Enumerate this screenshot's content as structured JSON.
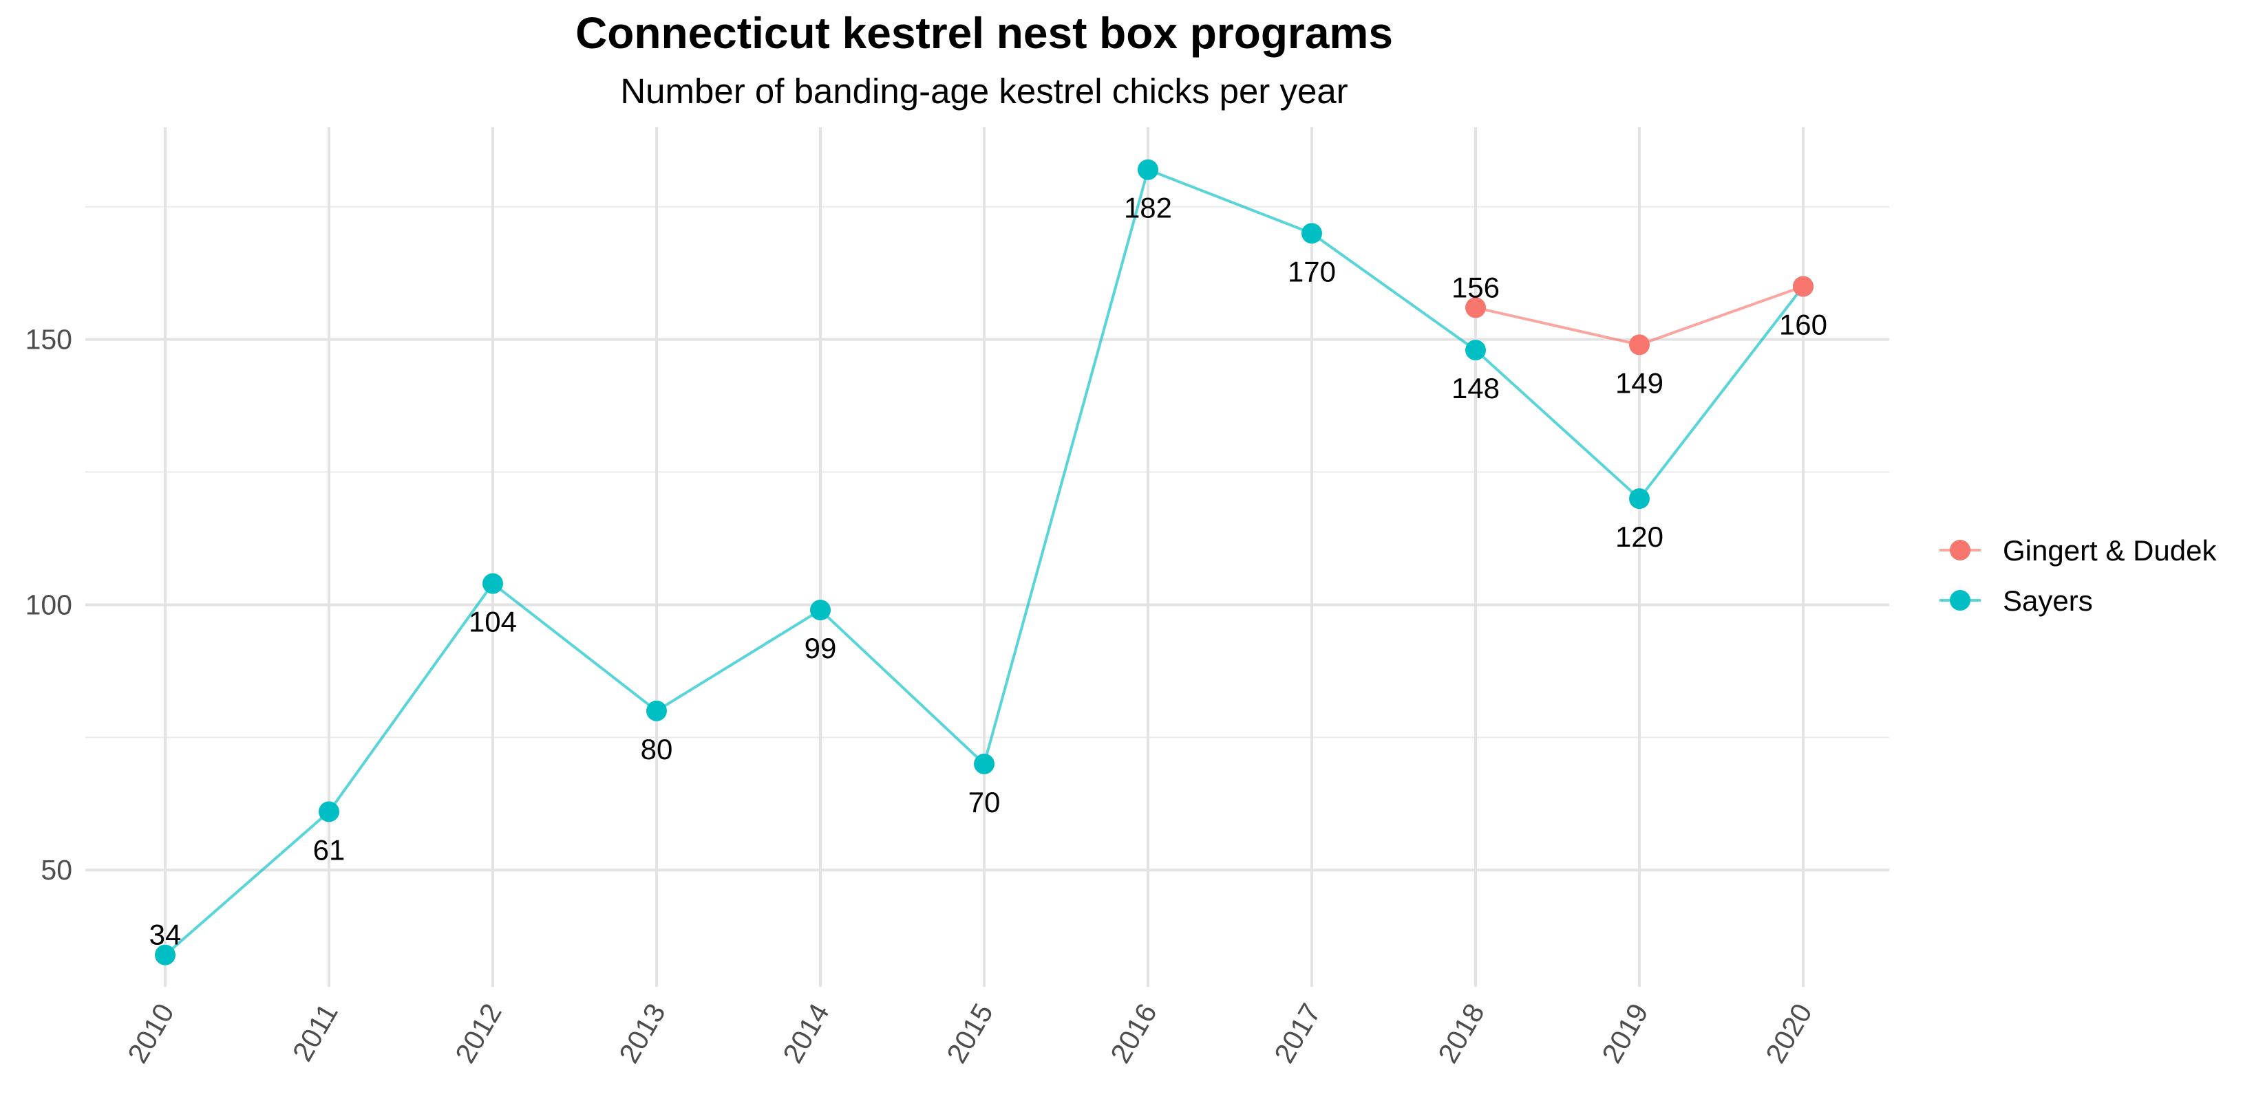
{
  "chart_data": {
    "type": "line",
    "title": "Connecticut kestrel nest box programs",
    "subtitle": "Number of banding-age kestrel chicks per year",
    "xlabel": "",
    "ylabel": "",
    "x": [
      "2010",
      "2011",
      "2012",
      "2013",
      "2014",
      "2015",
      "2016",
      "2017",
      "2018",
      "2019",
      "2020"
    ],
    "ylim": [
      28,
      190
    ],
    "y_ticks": [
      50,
      100,
      150
    ],
    "grid": true,
    "legend": "right",
    "series": [
      {
        "name": "Gingert & Dudek",
        "color": "#F8766D",
        "points": [
          {
            "x": "2018",
            "y": 156,
            "label": "156"
          },
          {
            "x": "2019",
            "y": 149,
            "label": "149"
          },
          {
            "x": "2020",
            "y": 160,
            "label": "160"
          }
        ]
      },
      {
        "name": "Sayers",
        "color": "#00BFC4",
        "points": [
          {
            "x": "2010",
            "y": 34,
            "label": "34"
          },
          {
            "x": "2011",
            "y": 61,
            "label": "61"
          },
          {
            "x": "2012",
            "y": 104,
            "label": "104"
          },
          {
            "x": "2013",
            "y": 80,
            "label": "80"
          },
          {
            "x": "2014",
            "y": 99,
            "label": "99"
          },
          {
            "x": "2015",
            "y": 70,
            "label": "70"
          },
          {
            "x": "2016",
            "y": 182,
            "label": "182"
          },
          {
            "x": "2017",
            "y": 170,
            "label": "170"
          },
          {
            "x": "2018",
            "y": 148,
            "label": "148"
          },
          {
            "x": "2019",
            "y": 120,
            "label": "120"
          },
          {
            "x": "2020",
            "y": 160,
            "label": "160"
          }
        ]
      }
    ]
  }
}
